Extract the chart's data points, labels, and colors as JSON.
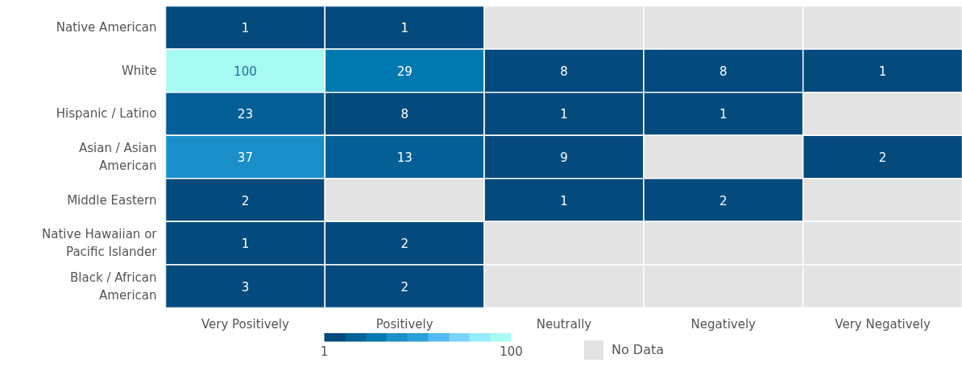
{
  "chart_data": {
    "type": "heatmap",
    "categories": [
      "Very Positively",
      "Positively",
      "Neutrally",
      "Negatively",
      "Very Negatively"
    ],
    "y_categories": [
      "Native American",
      "White",
      "Hispanic / Latino",
      "Asian / Asian American",
      "Middle Eastern",
      "Native Hawaiian or Pacific Islander",
      "Black / African American"
    ],
    "cells": [
      [
        1,
        1,
        null,
        null,
        null
      ],
      [
        100,
        29,
        8,
        8,
        1
      ],
      [
        23,
        8,
        1,
        1,
        null
      ],
      [
        37,
        13,
        9,
        null,
        2
      ],
      [
        2,
        null,
        1,
        2,
        null
      ],
      [
        1,
        2,
        null,
        null,
        null
      ],
      [
        3,
        2,
        null,
        null,
        null
      ]
    ],
    "colors": [
      "#054a7d",
      "#045f96",
      "#0079b0",
      "#1a8ec9",
      "#2a9fda",
      "#53b9f0",
      "#7ad4fb",
      "#95ecfc",
      "#a8fbf2"
    ],
    "clim": [
      1,
      100
    ],
    "cticks": [
      1,
      100
    ],
    "data_labels": true,
    "annotations": [
      "No Data"
    ]
  }
}
